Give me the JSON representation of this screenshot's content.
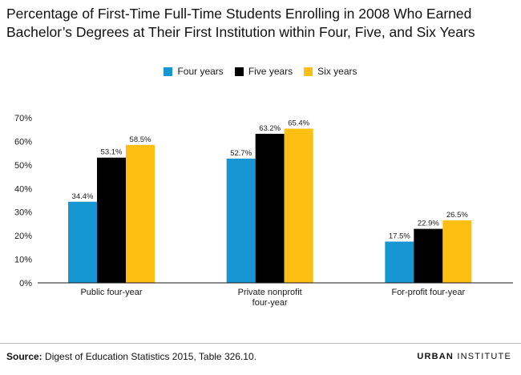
{
  "chart_data": {
    "type": "bar",
    "title": "Percentage of First-Time Full-Time Students Enrolling in 2008 Who Earned Bachelor’s Degrees at Their First Institution within Four, Five, and Six Years",
    "categories": [
      [
        "Public four-year"
      ],
      [
        "Private nonprofit",
        "four-year"
      ],
      [
        "For-profit four-year"
      ]
    ],
    "series": [
      {
        "name": "Four years",
        "color": "#1696d2",
        "values": [
          34.4,
          52.7,
          17.5
        ]
      },
      {
        "name": "Five years",
        "color": "#000000",
        "values": [
          53.1,
          63.2,
          22.9
        ]
      },
      {
        "name": "Six years",
        "color": "#fdbf11",
        "values": [
          58.5,
          65.4,
          26.5
        ]
      }
    ],
    "y_ticks": [
      "0%",
      "10%",
      "20%",
      "30%",
      "40%",
      "50%",
      "60%",
      "70%"
    ],
    "ylim": [
      0,
      70
    ],
    "value_suffix": "%",
    "legend_position": "top-center",
    "grid": false
  },
  "footer": {
    "source_label": "Source:",
    "source_text": "Digest of Education Statistics 2015, Table 326.10.",
    "logo_primary": "URBAN",
    "logo_secondary": "INSTITUTE"
  }
}
